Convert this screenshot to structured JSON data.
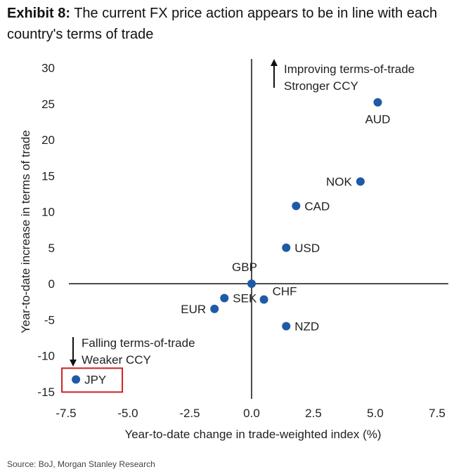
{
  "title": {
    "prefix": "Exhibit 8:",
    "text": "The current FX price action appears to be in line with each country's terms of trade"
  },
  "source": "Source: BoJ, Morgan Stanley Research",
  "annotations": {
    "top": [
      "Improving terms-of-trade",
      "Stronger CCY"
    ],
    "bottom": [
      "Falling terms-of-trade",
      "Weaker CCY"
    ]
  },
  "highlight_color": "#cc2222",
  "point_color": "#1f5aa6",
  "chart_data": {
    "type": "scatter",
    "xlabel": "Year-to-date change in trade-weighted index (%)",
    "ylabel": "Year-to-date increase in terms of trade",
    "xlim": [
      -8.5,
      8.5
    ],
    "ylim": [
      -16,
      31
    ],
    "xticks": [
      -7.5,
      -5.0,
      -2.5,
      0.0,
      2.5,
      5.0,
      7.5
    ],
    "xtick_labels": [
      "-7.5",
      "-5.0",
      "-2.5",
      "0.0",
      "2.5",
      "5.0",
      "7.5"
    ],
    "yticks": [
      30,
      25,
      20,
      15,
      10,
      5,
      0,
      -5,
      -10,
      -15
    ],
    "ytick_labels": [
      "30",
      "25",
      "20",
      "15",
      "10",
      "5",
      "0",
      "-5",
      "-10",
      "-15"
    ],
    "grid": false,
    "points": [
      {
        "label": "AUD",
        "x": 5.1,
        "y": 25.2,
        "label_pos": "below"
      },
      {
        "label": "NOK",
        "x": 4.4,
        "y": 14.2,
        "label_pos": "left"
      },
      {
        "label": "CAD",
        "x": 1.8,
        "y": 10.8,
        "label_pos": "right"
      },
      {
        "label": "USD",
        "x": 1.4,
        "y": 5.0,
        "label_pos": "right"
      },
      {
        "label": "GBP",
        "x": 0.0,
        "y": 0.0,
        "label_pos": "above"
      },
      {
        "label": "CHF",
        "x": 0.5,
        "y": -2.2,
        "label_pos": "upper-right"
      },
      {
        "label": "SEK",
        "x": -1.1,
        "y": -2.0,
        "label_pos": "right"
      },
      {
        "label": "EUR",
        "x": -1.5,
        "y": -3.5,
        "label_pos": "left"
      },
      {
        "label": "NZD",
        "x": 1.4,
        "y": -5.9,
        "label_pos": "right"
      },
      {
        "label": "JPY",
        "x": -7.1,
        "y": -13.3,
        "label_pos": "right",
        "highlighted": true
      }
    ]
  }
}
